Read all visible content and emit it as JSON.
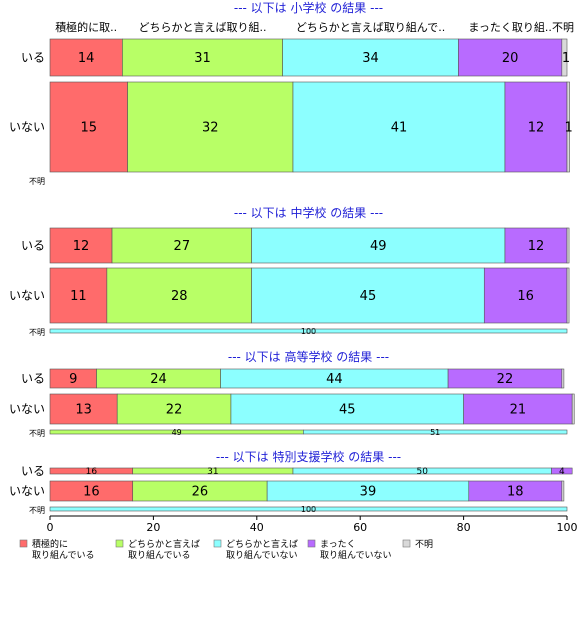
{
  "chart_data": {
    "type": "bar",
    "orientation": "horizontal",
    "stacked": "percent",
    "categories": [
      "積極的に取り組んでいる",
      "どちらかと言えば取り組んでいる",
      "どちらかと言えば取り組んでいない",
      "まったく取り組んでいない",
      "不明"
    ],
    "column_headers": [
      "積極的に取..",
      "どちらかと言えば取り組..",
      "どちらかと言えば取り組んで..",
      "まったく取り組..",
      "不明"
    ],
    "colors": {
      "積極的に取り組んでいる": "#ff6b6b",
      "どちらかと言えば取り組んでいる": "#b8ff66",
      "どちらかと言えば取り組んでいない": "#8cffff",
      "まったく取り組んでいない": "#b86bff",
      "不明": "#d9d9d9"
    },
    "xlim": [
      0,
      100
    ],
    "xticks": [
      0,
      20,
      40,
      60,
      80,
      100
    ],
    "legend": {
      "position": "bottom",
      "entries": [
        {
          "line1": "積極的に",
          "line2": "取り組んでいる"
        },
        {
          "line1": "どちらかと言えば",
          "line2": "取り組んでいる"
        },
        {
          "line1": "どちらかと言えば",
          "line2": "取り組んでいない"
        },
        {
          "line1": "まったく",
          "line2": "取り組んでいない"
        },
        {
          "line1": "不明",
          "line2": ""
        }
      ]
    },
    "panels": [
      {
        "title": "--- 以下は 小学校 の結果 ---",
        "rows": [
          {
            "label": "いる",
            "values": [
              14,
              31,
              34,
              20,
              1
            ],
            "labels": [
              "14",
              "31",
              "34",
              "20",
              "1"
            ]
          },
          {
            "label": "いない",
            "values": [
              15,
              32,
              41,
              12,
              0.5
            ],
            "labels": [
              "15",
              "32",
              "41",
              "12",
              "1"
            ]
          },
          {
            "label": "不明",
            "values": [],
            "labels": []
          }
        ]
      },
      {
        "title": "--- 以下は 中学校 の結果 ---",
        "rows": [
          {
            "label": "いる",
            "values": [
              12,
              27,
              49,
              12,
              0.4
            ],
            "labels": [
              "12",
              "27",
              "49",
              "12",
              ""
            ]
          },
          {
            "label": "いない",
            "values": [
              11,
              28,
              45,
              16,
              0.4
            ],
            "labels": [
              "11",
              "28",
              "45",
              "16",
              ""
            ]
          },
          {
            "label": "不明",
            "values": [
              0,
              0,
              100,
              0,
              0
            ],
            "labels": [
              "",
              "",
              "100",
              "",
              ""
            ]
          }
        ]
      },
      {
        "title": "--- 以下は 高等学校 の結果 ---",
        "rows": [
          {
            "label": "いる",
            "values": [
              9,
              24,
              44,
              22,
              0.4
            ],
            "labels": [
              "9",
              "24",
              "44",
              "22",
              ""
            ]
          },
          {
            "label": "いない",
            "values": [
              13,
              22,
              45,
              21,
              0.4
            ],
            "labels": [
              "13",
              "22",
              "45",
              "21",
              ""
            ]
          },
          {
            "label": "不明",
            "values": [
              0,
              49,
              51,
              0,
              0
            ],
            "labels": [
              "",
              "49",
              "51",
              "",
              ""
            ]
          }
        ]
      },
      {
        "title": "--- 以下は 特別支援学校 の結果 ---",
        "rows": [
          {
            "label": "いる",
            "values": [
              16,
              31,
              50,
              4,
              0
            ],
            "labels": [
              "16",
              "31",
              "50",
              "4",
              ""
            ]
          },
          {
            "label": "いない",
            "values": [
              16,
              26,
              39,
              18,
              0.4
            ],
            "labels": [
              "16",
              "26",
              "39",
              "18",
              ""
            ]
          },
          {
            "label": "不明",
            "values": [
              0,
              0,
              100,
              0,
              0
            ],
            "labels": [
              "",
              "",
              "100",
              "",
              ""
            ]
          }
        ]
      }
    ]
  }
}
